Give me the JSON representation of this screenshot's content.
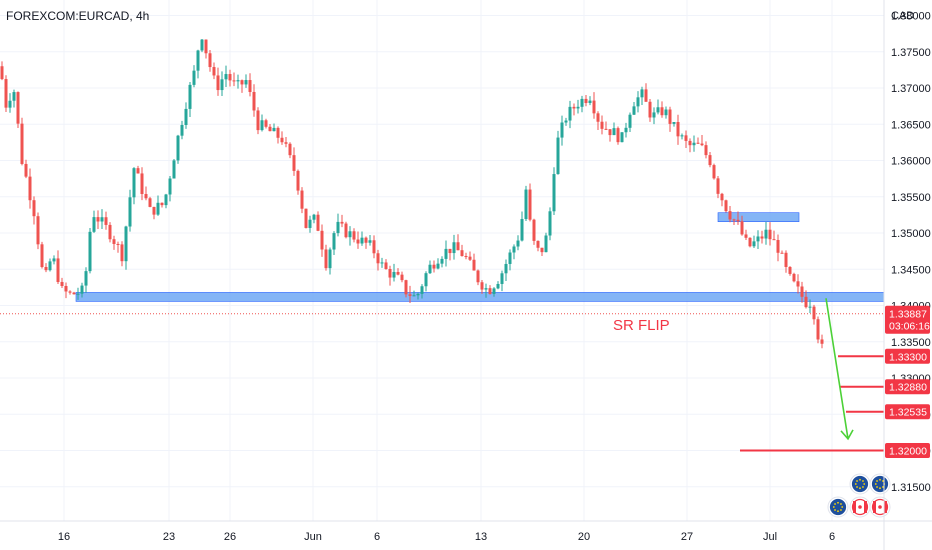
{
  "header": {
    "symbol": "FOREXCOM:EURCAD, 4h"
  },
  "axis": {
    "currency": "CAD"
  },
  "colors": {
    "up": "#26a69a",
    "down": "#ef5350",
    "zone_fill": "#6ea8f5",
    "zone_stroke": "#2962ff",
    "target": "#f23645",
    "arrow": "#4cd137",
    "grid": "#f0f3fa",
    "price_line": "#ef5350"
  },
  "chart_data": {
    "type": "candlestick",
    "interval": "4h",
    "ylim": [
      1.31,
      1.382
    ],
    "y_ticks": [
      "1.38000",
      "1.37500",
      "1.37000",
      "1.36500",
      "1.36000",
      "1.35500",
      "1.35000",
      "1.34500",
      "1.34000",
      "1.33500",
      "1.33000",
      "1.32500",
      "1.32000",
      "1.31500"
    ],
    "x_ticks": [
      "16",
      "23",
      "26",
      "Jun",
      "6",
      "13",
      "20",
      "27",
      "Jul",
      "6"
    ],
    "ohlc_waypoints": [
      [
        0,
        1.373
      ],
      [
        8,
        1.366
      ],
      [
        12,
        1.372
      ],
      [
        22,
        1.36
      ],
      [
        34,
        1.353
      ],
      [
        44,
        1.343
      ],
      [
        52,
        1.347
      ],
      [
        62,
        1.342
      ],
      [
        70,
        1.3415
      ],
      [
        84,
        1.342
      ],
      [
        92,
        1.353
      ],
      [
        110,
        1.35
      ],
      [
        122,
        1.347
      ],
      [
        134,
        1.359
      ],
      [
        150,
        1.353
      ],
      [
        164,
        1.354
      ],
      [
        176,
        1.362
      ],
      [
        186,
        1.368
      ],
      [
        194,
        1.372
      ],
      [
        201,
        1.378
      ],
      [
        208,
        1.374
      ],
      [
        216,
        1.37
      ],
      [
        226,
        1.372
      ],
      [
        236,
        1.37
      ],
      [
        246,
        1.371
      ],
      [
        258,
        1.365
      ],
      [
        270,
        1.364
      ],
      [
        282,
        1.363
      ],
      [
        296,
        1.358
      ],
      [
        306,
        1.351
      ],
      [
        316,
        1.352
      ],
      [
        326,
        1.346
      ],
      [
        336,
        1.351
      ],
      [
        348,
        1.35
      ],
      [
        360,
        1.349
      ],
      [
        372,
        1.348
      ],
      [
        384,
        1.345
      ],
      [
        396,
        1.344
      ],
      [
        406,
        1.342
      ],
      [
        416,
        1.341
      ],
      [
        428,
        1.345
      ],
      [
        440,
        1.347
      ],
      [
        452,
        1.348
      ],
      [
        464,
        1.347
      ],
      [
        476,
        1.344
      ],
      [
        488,
        1.342
      ],
      [
        500,
        1.344
      ],
      [
        510,
        1.347
      ],
      [
        520,
        1.35
      ],
      [
        526,
        1.356
      ],
      [
        532,
        1.349
      ],
      [
        540,
        1.347
      ],
      [
        548,
        1.35
      ],
      [
        556,
        1.362
      ],
      [
        566,
        1.366
      ],
      [
        578,
        1.368
      ],
      [
        590,
        1.369
      ],
      [
        600,
        1.365
      ],
      [
        612,
        1.364
      ],
      [
        622,
        1.363
      ],
      [
        632,
        1.368
      ],
      [
        642,
        1.369
      ],
      [
        652,
        1.366
      ],
      [
        664,
        1.367
      ],
      [
        676,
        1.364
      ],
      [
        688,
        1.362
      ],
      [
        700,
        1.362
      ],
      [
        710,
        1.36
      ],
      [
        718,
        1.356
      ],
      [
        728,
        1.353
      ],
      [
        738,
        1.351
      ],
      [
        748,
        1.348
      ],
      [
        758,
        1.349
      ],
      [
        766,
        1.35
      ],
      [
        778,
        1.348
      ],
      [
        788,
        1.344
      ],
      [
        798,
        1.342
      ],
      [
        806,
        1.3405
      ],
      [
        812,
        1.3405
      ],
      [
        818,
        1.336
      ],
      [
        824,
        1.333
      ]
    ],
    "annotations": {
      "support_zone": {
        "label": "",
        "y_low": 1.34065,
        "y_high": 1.34125,
        "x_start_date": "May 17",
        "x_end": "right edge"
      },
      "resistance_box": {
        "y_low": 1.3518,
        "y_high": 1.3528,
        "x_start_date": "Jun 28",
        "x_end_date": "Jul 3"
      },
      "sr_flip_label": "SR FLIP",
      "current_price": {
        "value": "1.33887",
        "countdown": "03:06:16"
      },
      "targets": [
        "1.33300",
        "1.32880",
        "1.32535",
        "1.32000"
      ],
      "target_values": [
        1.333,
        1.3288,
        1.32535,
        1.32
      ],
      "projection": {
        "from": 1.341,
        "to": 1.3205
      }
    }
  }
}
